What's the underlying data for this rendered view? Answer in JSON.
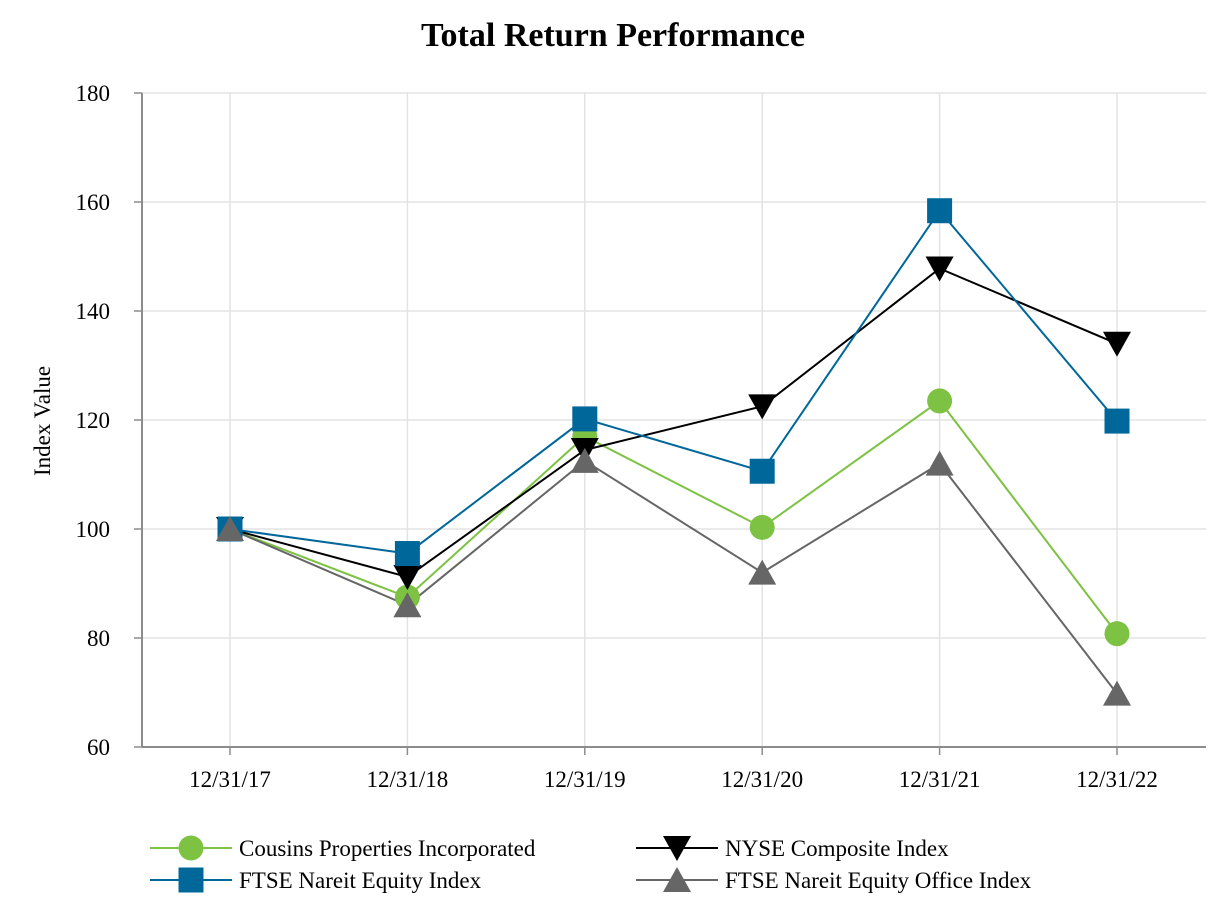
{
  "chart_data": {
    "type": "line",
    "title": "Total Return Performance",
    "xlabel": "",
    "ylabel": "Index Value",
    "ylim": [
      60,
      180
    ],
    "yticks": [
      60,
      80,
      100,
      120,
      140,
      160,
      180
    ],
    "categories": [
      "12/31/17",
      "12/31/18",
      "12/31/19",
      "12/31/20",
      "12/31/21",
      "12/31/22"
    ],
    "grid": true,
    "legend_position": "bottom",
    "series": [
      {
        "name": "Cousins Properties Incorporated",
        "color": "#7dc242",
        "marker": "circle",
        "values": [
          100,
          87.5,
          117,
          100.3,
          123.5,
          80.8
        ]
      },
      {
        "name": "NYSE Composite Index",
        "color": "#000000",
        "marker": "triangle-down",
        "values": [
          100,
          91.2,
          114.5,
          122.5,
          147.8,
          134
        ]
      },
      {
        "name": "FTSE Nareit Equity Index",
        "color": "#00679a",
        "marker": "square",
        "values": [
          100,
          95.5,
          120.2,
          110.6,
          158.4,
          119.8
        ]
      },
      {
        "name": "FTSE Nareit Equity Office Index",
        "color": "#666666",
        "marker": "triangle-up",
        "values": [
          100,
          86,
          112.5,
          92,
          112,
          69.8
        ]
      }
    ]
  }
}
